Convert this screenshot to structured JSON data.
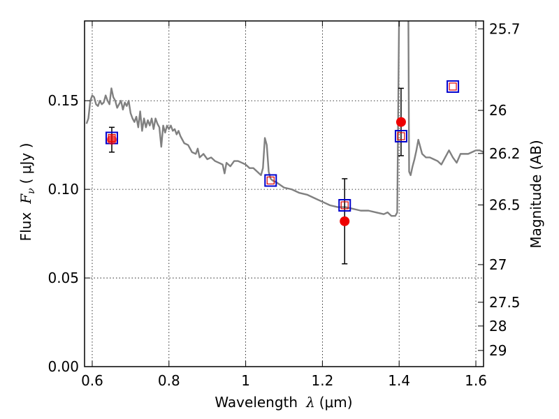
{
  "chart_data": {
    "type": "scatter",
    "xlabel_text": "Wavelength",
    "xlabel_symbol": "λ",
    "xlabel_unit": "(μm)",
    "ylabel_text": "Flux",
    "ylabel_symbol": "F",
    "ylabel_sub": "ν",
    "ylabel_unit": "( μJy )",
    "y2label": "Magnitude (AB)",
    "xlim": [
      0.58,
      1.62
    ],
    "ylim": [
      0.0,
      0.195
    ],
    "grid": true,
    "x_ticks": [
      0.6,
      0.8,
      1.0,
      1.2,
      1.4,
      1.6
    ],
    "x_tick_labels": [
      "0.6",
      "0.8",
      "1",
      "1.2",
      "1.4",
      "1.6"
    ],
    "y_ticks": [
      0.0,
      0.05,
      0.1,
      0.15
    ],
    "y_tick_labels": [
      "0.00",
      "0.05",
      "0.10",
      "0.15"
    ],
    "mag_ticks": [
      25.7,
      26,
      26.2,
      26.5,
      27,
      27.5,
      28,
      29
    ],
    "mag_tick_labels": [
      "25.7",
      "26",
      "26.2",
      "26.5",
      "27",
      "27.5",
      "28",
      "29"
    ],
    "series": [
      {
        "kind": "model_spectrum",
        "color": "#808080",
        "x": [
          0.585,
          0.59,
          0.595,
          0.6,
          0.605,
          0.61,
          0.615,
          0.62,
          0.625,
          0.63,
          0.635,
          0.64,
          0.645,
          0.65,
          0.655,
          0.66,
          0.665,
          0.67,
          0.675,
          0.68,
          0.685,
          0.69,
          0.695,
          0.7,
          0.705,
          0.71,
          0.715,
          0.72,
          0.725,
          0.73,
          0.735,
          0.74,
          0.745,
          0.75,
          0.755,
          0.76,
          0.765,
          0.77,
          0.775,
          0.78,
          0.785,
          0.79,
          0.795,
          0.8,
          0.805,
          0.81,
          0.815,
          0.82,
          0.825,
          0.83,
          0.84,
          0.85,
          0.86,
          0.87,
          0.875,
          0.88,
          0.89,
          0.9,
          0.91,
          0.92,
          0.93,
          0.94,
          0.945,
          0.95,
          0.96,
          0.97,
          0.98,
          0.99,
          1.0,
          1.01,
          1.02,
          1.03,
          1.04,
          1.045,
          1.05,
          1.055,
          1.06,
          1.065,
          1.07,
          1.08,
          1.1,
          1.12,
          1.14,
          1.16,
          1.18,
          1.2,
          1.22,
          1.24,
          1.26,
          1.28,
          1.3,
          1.32,
          1.34,
          1.36,
          1.37,
          1.38,
          1.39,
          1.395,
          1.4,
          1.402,
          1.404,
          1.408,
          1.412,
          1.414,
          1.416,
          1.42,
          1.424,
          1.426,
          1.43,
          1.435,
          1.44,
          1.445,
          1.45,
          1.46,
          1.47,
          1.48,
          1.49,
          1.5,
          1.51,
          1.52,
          1.53,
          1.54,
          1.55,
          1.56,
          1.57,
          1.58,
          1.59,
          1.6,
          1.61,
          1.62
        ],
        "y": [
          0.137,
          0.14,
          0.15,
          0.153,
          0.152,
          0.148,
          0.147,
          0.15,
          0.148,
          0.149,
          0.153,
          0.15,
          0.148,
          0.157,
          0.152,
          0.15,
          0.146,
          0.148,
          0.15,
          0.145,
          0.149,
          0.147,
          0.15,
          0.143,
          0.14,
          0.138,
          0.141,
          0.135,
          0.144,
          0.133,
          0.14,
          0.135,
          0.139,
          0.136,
          0.14,
          0.134,
          0.14,
          0.137,
          0.135,
          0.124,
          0.136,
          0.132,
          0.136,
          0.134,
          0.136,
          0.133,
          0.134,
          0.131,
          0.133,
          0.13,
          0.126,
          0.125,
          0.121,
          0.12,
          0.123,
          0.118,
          0.12,
          0.117,
          0.118,
          0.116,
          0.115,
          0.114,
          0.109,
          0.115,
          0.113,
          0.116,
          0.116,
          0.115,
          0.114,
          0.112,
          0.112,
          0.11,
          0.108,
          0.112,
          0.129,
          0.125,
          0.11,
          0.106,
          0.105,
          0.104,
          0.101,
          0.1,
          0.098,
          0.097,
          0.095,
          0.093,
          0.091,
          0.09,
          0.09,
          0.089,
          0.088,
          0.088,
          0.087,
          0.086,
          0.087,
          0.085,
          0.085,
          0.087,
          0.2,
          0.2,
          0.2,
          0.2,
          0.2,
          0.2,
          0.2,
          0.2,
          0.2,
          0.11,
          0.108,
          0.113,
          0.117,
          0.122,
          0.128,
          0.12,
          0.118,
          0.118,
          0.117,
          0.116,
          0.114,
          0.118,
          0.122,
          0.118,
          0.115,
          0.12,
          0.12,
          0.12,
          0.121,
          0.122,
          0.122,
          0.121
        ]
      },
      {
        "kind": "model_photometry",
        "marker": "square",
        "outer_color": "#0000cc",
        "inner_color": "#dd0000",
        "x": [
          0.651,
          1.065,
          1.258,
          1.405,
          1.54
        ],
        "y": [
          0.129,
          0.105,
          0.091,
          0.13,
          0.158
        ]
      },
      {
        "kind": "observed",
        "marker": "circle",
        "color": "#ee0000",
        "x": [
          0.651,
          1.258,
          1.405
        ],
        "y": [
          0.128,
          0.082,
          0.138
        ],
        "err_low": [
          0.007,
          0.024,
          0.019
        ],
        "err_high": [
          0.007,
          0.024,
          0.019
        ]
      }
    ]
  }
}
